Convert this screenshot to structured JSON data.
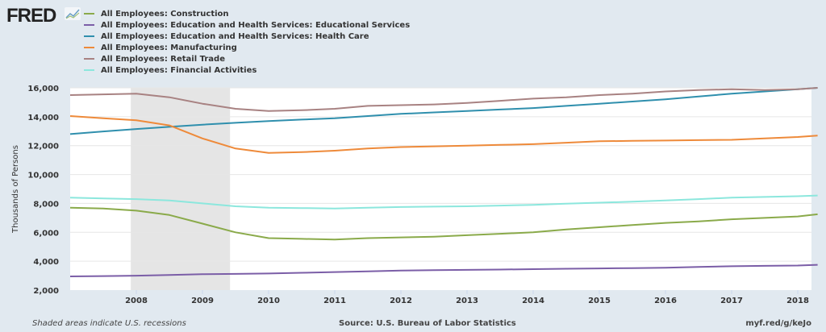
{
  "header": {
    "logo": "FRED",
    "logo_icon": "chart-line-icon"
  },
  "chart_data": {
    "type": "line",
    "title": "",
    "xlabel": "",
    "ylabel": "Thousands of Persons",
    "xlim": [
      "2007-01",
      "2018-04"
    ],
    "ylim": [
      2000,
      16000
    ],
    "yticks": [
      2000,
      4000,
      6000,
      8000,
      10000,
      12000,
      14000,
      16000
    ],
    "ytick_labels": [
      "2,000",
      "4,000",
      "6,000",
      "8,000",
      "10,000",
      "12,000",
      "14,000",
      "16,000"
    ],
    "xticks": [
      2008,
      2009,
      2010,
      2011,
      2012,
      2013,
      2014,
      2015,
      2016,
      2017,
      2018
    ],
    "xtick_labels": [
      "2008",
      "2009",
      "2010",
      "2011",
      "2012",
      "2013",
      "2014",
      "2015",
      "2016",
      "2017",
      "2018"
    ],
    "grid": "horizontal",
    "legend": "top-left",
    "recessions": [
      {
        "start": "2007-12",
        "end": "2009-06"
      }
    ],
    "x": [
      2007.0,
      2007.5,
      2008.0,
      2008.5,
      2009.0,
      2009.5,
      2010.0,
      2010.5,
      2011.0,
      2011.5,
      2012.0,
      2012.5,
      2013.0,
      2013.5,
      2014.0,
      2014.5,
      2015.0,
      2015.5,
      2016.0,
      2016.5,
      2017.0,
      2017.5,
      2018.0,
      2018.3
    ],
    "series": [
      {
        "name": "All Employees: Construction",
        "color": "#8aaa4a",
        "values": [
          7700,
          7650,
          7500,
          7200,
          6600,
          6000,
          5600,
          5550,
          5500,
          5600,
          5650,
          5700,
          5800,
          5900,
          6000,
          6200,
          6350,
          6500,
          6650,
          6750,
          6900,
          7000,
          7100,
          7250
        ]
      },
      {
        "name": "All Employees: Education and Health Services: Educational Services",
        "color": "#7b5ea7",
        "values": [
          2950,
          2970,
          3000,
          3050,
          3100,
          3120,
          3150,
          3200,
          3250,
          3300,
          3350,
          3380,
          3400,
          3420,
          3450,
          3480,
          3500,
          3520,
          3550,
          3600,
          3650,
          3680,
          3700,
          3750
        ]
      },
      {
        "name": "All Employees: Education and Health Services: Health Care",
        "color": "#2f8fad",
        "values": [
          12800,
          12980,
          13150,
          13300,
          13450,
          13580,
          13700,
          13800,
          13900,
          14050,
          14200,
          14300,
          14400,
          14500,
          14600,
          14750,
          14900,
          15050,
          15200,
          15400,
          15600,
          15750,
          15900,
          16000
        ]
      },
      {
        "name": "All Employees: Manufacturing",
        "color": "#ee8a3a",
        "values": [
          14050,
          13900,
          13750,
          13400,
          12500,
          11800,
          11500,
          11550,
          11650,
          11800,
          11900,
          11950,
          12000,
          12050,
          12100,
          12200,
          12300,
          12330,
          12350,
          12380,
          12400,
          12500,
          12600,
          12700
        ]
      },
      {
        "name": "All Employees: Retail Trade",
        "color": "#a88282",
        "values": [
          15500,
          15550,
          15600,
          15350,
          14900,
          14550,
          14400,
          14450,
          14550,
          14750,
          14800,
          14850,
          14950,
          15100,
          15250,
          15350,
          15500,
          15600,
          15750,
          15850,
          15900,
          15850,
          15900,
          16000
        ]
      },
      {
        "name": "All Employees: Financial Activities",
        "color": "#8ce7dd",
        "values": [
          8400,
          8350,
          8300,
          8200,
          8000,
          7800,
          7700,
          7680,
          7650,
          7700,
          7750,
          7780,
          7800,
          7850,
          7900,
          7980,
          8050,
          8120,
          8200,
          8300,
          8400,
          8450,
          8500,
          8550
        ]
      }
    ]
  },
  "footer": {
    "note": "Shaded areas indicate U.S. recessions",
    "source": "Source: U.S. Bureau of Labor Statistics",
    "link": "myf.red/g/keJo"
  }
}
